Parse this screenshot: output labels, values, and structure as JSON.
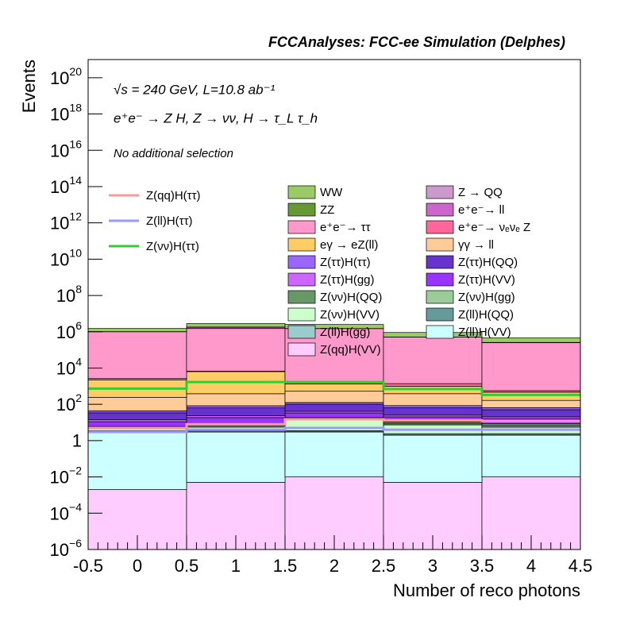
{
  "chart_data": {
    "type": "stacked_histogram",
    "title": "FCCAnalyses: FCC-ee Simulation (Delphes)",
    "annotations": [
      "√s = 240 GeV, L=10.8 ab⁻¹",
      "e⁺e⁻ → Z H, Z → νν, H → τ_L τ_h",
      "No additional selection"
    ],
    "xlabel": "Number of reco photons",
    "ylabel": "Events",
    "log_y": true,
    "bins": [
      -0.5,
      0.5,
      1.5,
      2.5,
      3.5,
      4.5
    ],
    "xlim": [
      -0.5,
      4.5
    ],
    "xticks": [
      -0.5,
      0,
      0.5,
      1,
      1.5,
      2,
      2.5,
      3,
      3.5,
      4,
      4.5
    ],
    "ylim": [
      1e-06,
      1e+21
    ],
    "yticks": [
      {
        "value": 1e-06,
        "label": "10^-6"
      },
      {
        "value": 0.0001,
        "label": "10^-4"
      },
      {
        "value": 0.01,
        "label": "10^-2"
      },
      1,
      {
        "value": 100,
        "label": "10^2"
      },
      {
        "value": 10000.0,
        "label": "10^4"
      },
      {
        "value": 1000000.0,
        "label": "10^6"
      },
      {
        "value": 100000000.0,
        "label": "10^8"
      },
      {
        "value": 10000000000.0,
        "label": "10^10"
      },
      {
        "value": 1000000000000.0,
        "label": "10^12"
      },
      {
        "value": 100000000000000.0,
        "label": "10^14"
      },
      {
        "value": 1e+16,
        "label": "10^16"
      },
      {
        "value": 1e+18,
        "label": "10^18"
      },
      {
        "value": 1e+20,
        "label": "10^20"
      }
    ],
    "series": [
      {
        "name": "WW",
        "color": "#99cc66",
        "values": [
          500000,
          1000000,
          1000000,
          400000,
          200000
        ]
      },
      {
        "name": "Z → QQ",
        "color": "#cc99cc",
        "values": [
          100,
          100,
          100,
          2000,
          3000
        ]
      },
      {
        "name": "ZZ",
        "color": "#669933",
        "values": [
          9000,
          10000,
          3000,
          2000,
          1500
        ]
      },
      {
        "name": "e⁺e⁻→ ll",
        "color": "#cc66cc",
        "values": [
          3000,
          300000,
          5000,
          4000,
          3000
        ]
      },
      {
        "name": "e⁺e⁻→ ττ",
        "color": "#ff99cc",
        "values": [
          1000000,
          1500000,
          1500000,
          500000,
          250000
        ]
      },
      {
        "name": "e⁺e⁻→ νₑνₑ Z",
        "color": "#ff6699",
        "values": [
          400,
          400,
          500,
          400,
          100
        ]
      },
      {
        "name": "eγ → eZ(ll)",
        "color": "#ffcc66",
        "values": [
          2000,
          6000,
          800,
          600,
          300
        ]
      },
      {
        "name": "γγ → ll",
        "color": "#ffcc99",
        "values": [
          200,
          300,
          400,
          300,
          100
        ]
      },
      {
        "name": "Z(ττ)H(ττ)",
        "color": "#9966ff",
        "values": [
          10,
          20,
          25,
          20,
          15
        ]
      },
      {
        "name": "Z(ττ)H(QQ)",
        "color": "#6633cc",
        "values": [
          20,
          40,
          60,
          40,
          30
        ]
      },
      {
        "name": "Z(ττ)H(gg)",
        "color": "#cc66ff",
        "values": [
          3,
          5,
          8,
          5,
          4
        ]
      },
      {
        "name": "Z(ττ)H(VV)",
        "color": "#9933ff",
        "values": [
          5,
          10,
          15,
          10,
          8
        ]
      },
      {
        "name": "Z(νν)H(QQ)",
        "color": "#669966",
        "values": [
          1,
          2,
          3,
          2,
          2
        ]
      },
      {
        "name": "Z(νν)H(gg)",
        "color": "#99cc99",
        "values": [
          0.5,
          1,
          2,
          1,
          1
        ]
      },
      {
        "name": "Z(νν)H(VV)",
        "color": "#ccffcc",
        "values": [
          1,
          2,
          10,
          5,
          3
        ]
      },
      {
        "name": "Z(ll)H(QQ)",
        "color": "#669999",
        "values": [
          0.5,
          0.5,
          0.5,
          0.4,
          0.4
        ]
      },
      {
        "name": "Z(ll)H(gg)",
        "color": "#99cccc",
        "values": [
          0.01,
          0.02,
          0.02,
          0.01,
          0.01
        ]
      },
      {
        "name": "Z(ll)H(VV)",
        "color": "#ccffff",
        "values": [
          3,
          3,
          3,
          2,
          2
        ]
      },
      {
        "name": "Z(qq)H(VV)",
        "color": "#ffccff",
        "values": [
          0.002,
          0.005,
          0.01,
          0.005,
          0.01
        ]
      }
    ],
    "lines": [
      {
        "name": "Z(qq)H(ττ)",
        "color": "#ff9999",
        "values": [
          5,
          8,
          15,
          13,
          12
        ]
      },
      {
        "name": "Z(ll)H(ττ)",
        "color": "#9999ff",
        "values": [
          3,
          4,
          5,
          4,
          4
        ]
      },
      {
        "name": "Z(νν)H(ττ)",
        "color": "#33cc33",
        "values": [
          740,
          1700,
          1700,
          700,
          330
        ]
      }
    ]
  }
}
